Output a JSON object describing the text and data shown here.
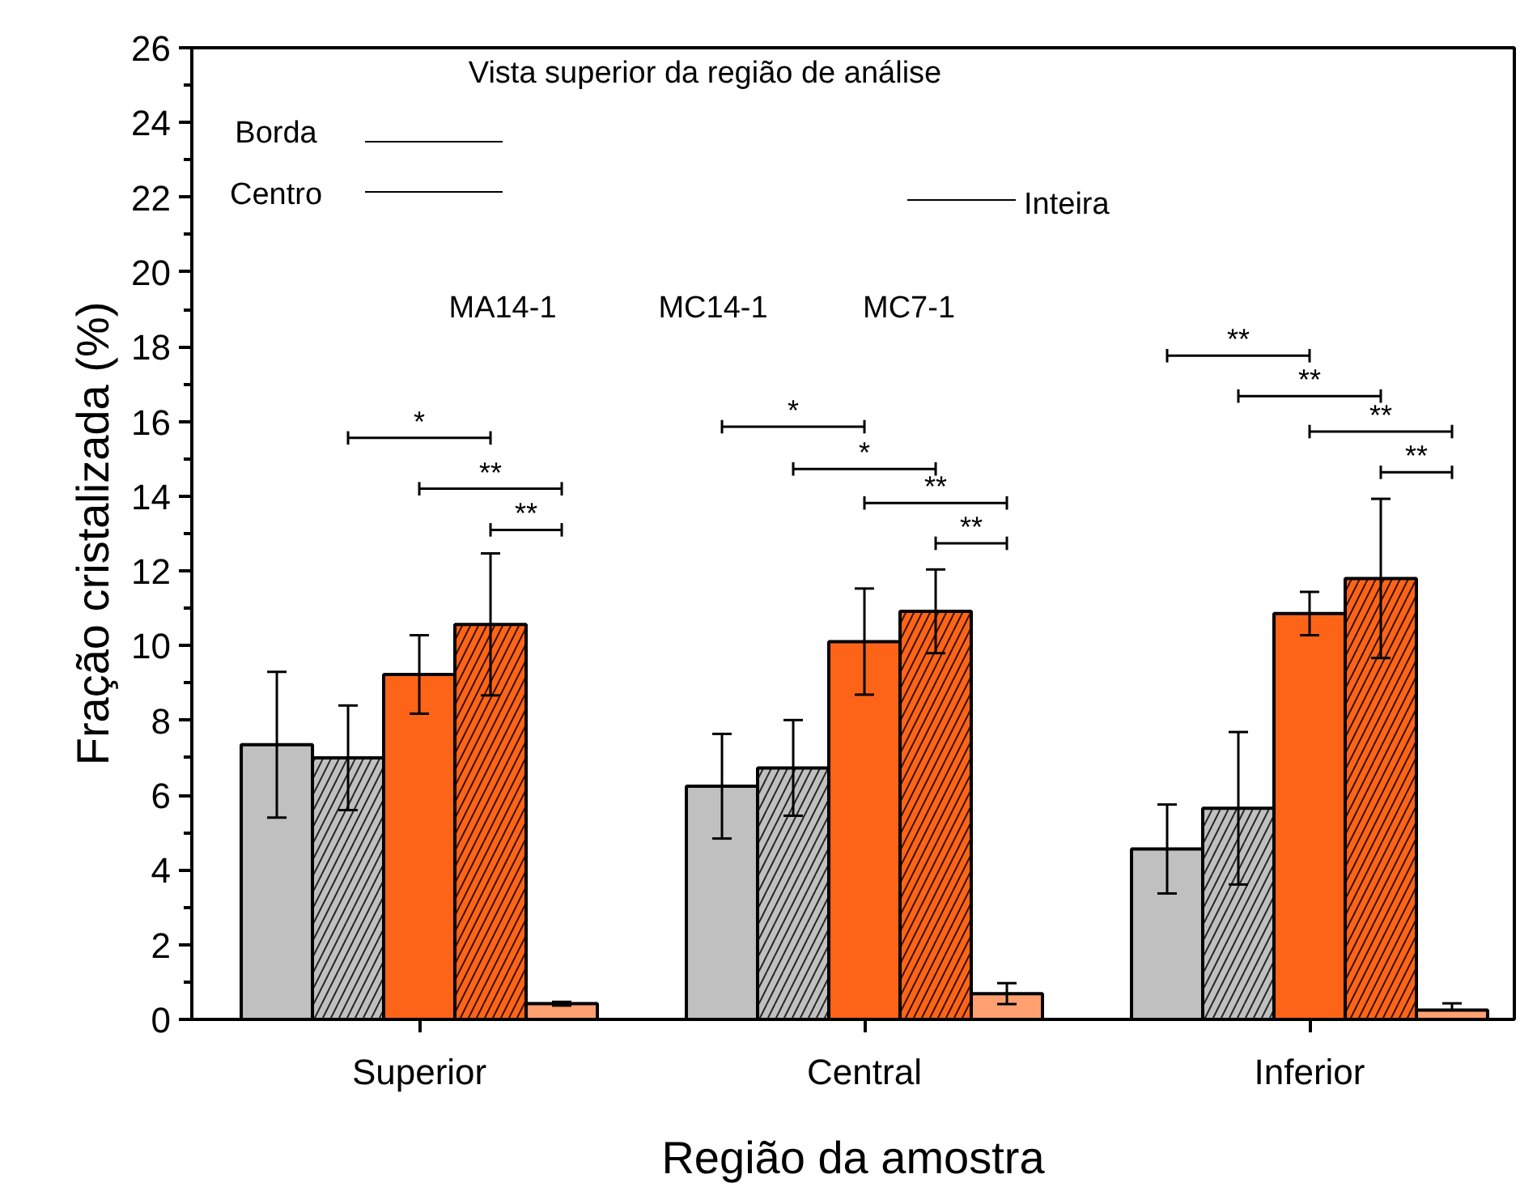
{
  "chart_data": {
    "type": "bar",
    "xlabel": "Região da amostra",
    "ylabel": "Fração cristalizada (%)",
    "categories": [
      "Superior",
      "Central",
      "Inferior"
    ],
    "series": [
      {
        "color": "#c0c0c0",
        "values": [
          7.35,
          6.24,
          4.56
        ],
        "errors": [
          1.95,
          1.4,
          1.19
        ]
      },
      {
        "color": "#c0c0c0",
        "values": [
          7.0,
          6.73,
          5.65
        ],
        "errors": [
          1.4,
          1.28,
          2.04
        ]
      },
      {
        "color": "#fe6418",
        "values": [
          9.23,
          10.11,
          10.86
        ],
        "errors": [
          1.05,
          1.42,
          0.58
        ]
      },
      {
        "color": "#fe6418",
        "values": [
          10.57,
          10.92,
          11.8
        ],
        "errors": [
          1.9,
          1.12,
          2.13
        ]
      },
      {
        "color": "#ffa070",
        "values": [
          0.42,
          0.69,
          0.25
        ],
        "errors": [
          0.05,
          0.28,
          [
            0.25,
            0.43
          ]
        ]
      }
    ],
    "ylim": [
      0,
      26
    ],
    "yticks": [
      0,
      2,
      4,
      6,
      8,
      10,
      12,
      14,
      16,
      18,
      20,
      22,
      24,
      26
    ],
    "grid": false,
    "annotations": [
      "Vista superior da região de análise",
      "Borda",
      "Centro",
      "Inteira",
      "MA14-1",
      "MC14-1",
      "MC7-1",
      "*",
      "**",
      "**",
      "*",
      "*",
      "**",
      "**",
      "**",
      "**",
      "**",
      "**"
    ]
  }
}
